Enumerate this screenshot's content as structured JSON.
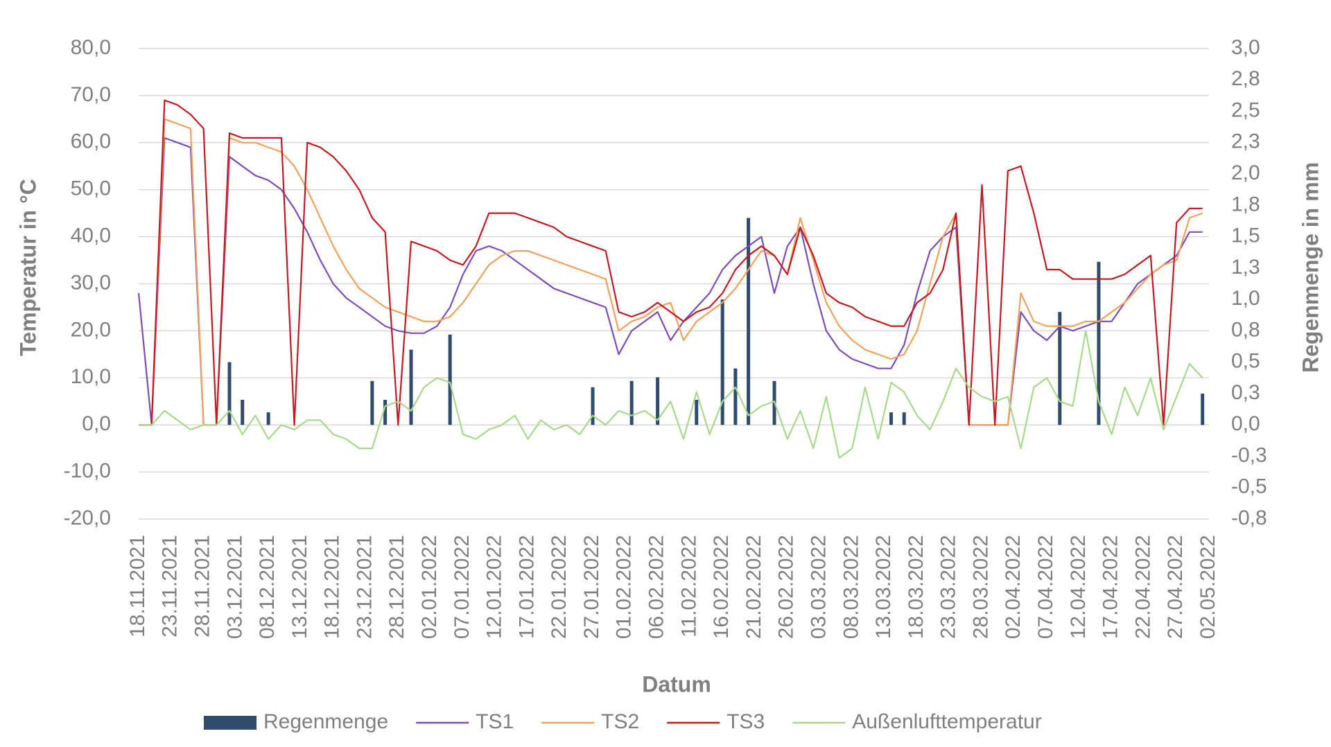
{
  "chart_data": {
    "type": "line",
    "y_label": "Temperatur in °C",
    "y2_label": "Regenmenge in mm",
    "x_label": "Datum",
    "x": [
      "18.11.2021",
      "20.11.2021",
      "22.11.2021",
      "24.11.2021",
      "26.11.2021",
      "28.11.2021",
      "30.11.2021",
      "02.12.2021",
      "04.12.2021",
      "06.12.2021",
      "08.12.2021",
      "10.12.2021",
      "12.12.2021",
      "14.12.2021",
      "16.12.2021",
      "18.12.2021",
      "20.12.2021",
      "22.12.2021",
      "24.12.2021",
      "26.12.2021",
      "28.12.2021",
      "30.12.2021",
      "01.01.2022",
      "03.01.2022",
      "05.01.2022",
      "07.01.2022",
      "09.01.2022",
      "11.01.2022",
      "13.01.2022",
      "15.01.2022",
      "17.01.2022",
      "19.01.2022",
      "21.01.2022",
      "23.01.2022",
      "25.01.2022",
      "27.01.2022",
      "29.01.2022",
      "31.01.2022",
      "02.02.2022",
      "04.02.2022",
      "06.02.2022",
      "08.02.2022",
      "10.02.2022",
      "12.02.2022",
      "14.02.2022",
      "16.02.2022",
      "18.02.2022",
      "20.02.2022",
      "22.02.2022",
      "24.02.2022",
      "26.02.2022",
      "28.02.2022",
      "02.03.2022",
      "04.03.2022",
      "06.03.2022",
      "08.03.2022",
      "10.03.2022",
      "12.03.2022",
      "14.03.2022",
      "16.03.2022",
      "18.03.2022",
      "20.03.2022",
      "22.03.2022",
      "24.03.2022",
      "26.03.2022",
      "28.03.2022",
      "30.03.2022",
      "01.04.2022",
      "03.04.2022",
      "05.04.2022",
      "07.04.2022",
      "09.04.2022",
      "11.04.2022",
      "13.04.2022",
      "15.04.2022",
      "17.04.2022",
      "19.04.2022",
      "21.04.2022",
      "23.04.2022",
      "25.04.2022",
      "27.04.2022",
      "29.04.2022",
      "01.05.2022"
    ],
    "xlim": [
      "18.11.2021",
      "02.05.2022"
    ],
    "xticks": [
      "18.11.2021",
      "23.11.2021",
      "28.11.2021",
      "03.12.2021",
      "08.12.2021",
      "13.12.2021",
      "18.12.2021",
      "23.12.2021",
      "28.12.2021",
      "02.01.2022",
      "07.01.2022",
      "12.01.2022",
      "17.01.2022",
      "22.01.2022",
      "27.01.2022",
      "01.02.2022",
      "06.02.2022",
      "11.02.2022",
      "16.02.2022",
      "21.02.2022",
      "26.02.2022",
      "03.03.2022",
      "08.03.2022",
      "13.03.2022",
      "18.03.2022",
      "23.03.2022",
      "28.03.2022",
      "02.04.2022",
      "07.04.2022",
      "12.04.2022",
      "17.04.2022",
      "22.04.2022",
      "27.04.2022",
      "02.05.2022"
    ],
    "ylim": [
      -20,
      80
    ],
    "yticks": [
      {
        "value": -20,
        "label": "-20,0"
      },
      {
        "value": -10,
        "label": "-10,0"
      },
      {
        "value": 0,
        "label": "0,0"
      },
      {
        "value": 10,
        "label": "10,0"
      },
      {
        "value": 20,
        "label": "20,0"
      },
      {
        "value": 30,
        "label": "30,0"
      },
      {
        "value": 40,
        "label": "40,0"
      },
      {
        "value": 50,
        "label": "50,0"
      },
      {
        "value": 60,
        "label": "60,0"
      },
      {
        "value": 70,
        "label": "70,0"
      },
      {
        "value": 80,
        "label": "80,0"
      }
    ],
    "y2lim": [
      -0.75,
      3.0
    ],
    "y2ticks": [
      {
        "value": -0.75,
        "label": "-0,8"
      },
      {
        "value": -0.5,
        "label": "-0,5"
      },
      {
        "value": -0.25,
        "label": "-0,3"
      },
      {
        "value": 0,
        "label": "0,0"
      },
      {
        "value": 0.25,
        "label": "0,3"
      },
      {
        "value": 0.5,
        "label": "0,5"
      },
      {
        "value": 0.75,
        "label": "0,8"
      },
      {
        "value": 1.0,
        "label": "1,0"
      },
      {
        "value": 1.25,
        "label": "1,3"
      },
      {
        "value": 1.5,
        "label": "1,5"
      },
      {
        "value": 1.75,
        "label": "1,8"
      },
      {
        "value": 2.0,
        "label": "2,0"
      },
      {
        "value": 2.25,
        "label": "2,3"
      },
      {
        "value": 2.5,
        "label": "2,5"
      },
      {
        "value": 2.75,
        "label": "2,8"
      },
      {
        "value": 3.0,
        "label": "3,0"
      }
    ],
    "grid": true,
    "legend": "bottom",
    "series": [
      {
        "name": "Regenmenge",
        "type": "bar",
        "axis": "y2",
        "color": "#2f4b6e",
        "values": [
          0,
          0,
          0,
          0,
          0,
          0,
          0,
          0.5,
          0.2,
          0,
          0.1,
          0,
          0,
          0,
          0,
          0,
          0,
          0,
          0.35,
          0.2,
          0,
          0.6,
          0,
          0,
          0.72,
          0,
          0,
          0,
          0,
          0,
          0,
          0,
          0,
          0,
          0,
          0.3,
          0,
          0,
          0.35,
          0,
          0.38,
          0,
          0,
          0.2,
          0,
          1.0,
          0.45,
          1.65,
          0,
          0.35,
          0,
          0,
          0,
          0,
          0,
          0,
          0,
          0,
          0.1,
          0.1,
          0,
          0,
          0,
          0,
          0,
          0,
          0,
          0,
          0,
          0,
          0,
          0.9,
          0,
          0,
          1.3,
          0,
          0,
          0,
          0,
          0,
          0,
          0,
          0.25
        ]
      },
      {
        "name": "TS1",
        "type": "line",
        "color": "#7a4cbc",
        "values": [
          28,
          0,
          61,
          60,
          59,
          0,
          0,
          57,
          55,
          53,
          52,
          50,
          46,
          41,
          35,
          30,
          27,
          25,
          23,
          21,
          20,
          19.5,
          19.5,
          21,
          25,
          32,
          37,
          38,
          37,
          35,
          33,
          31,
          29,
          28,
          27,
          26,
          25,
          15,
          20,
          22,
          24,
          18,
          22,
          25,
          28,
          33,
          36,
          38,
          40,
          28,
          38,
          42,
          30,
          20,
          16,
          14,
          13,
          12,
          12,
          17,
          28,
          37,
          40,
          42,
          0,
          0,
          0,
          0,
          24,
          20,
          18,
          21,
          20,
          21,
          22,
          22,
          26,
          30,
          32,
          34,
          36,
          41,
          41
        ]
      },
      {
        "name": "TS2",
        "type": "line",
        "color": "#f5a05a",
        "values": [
          0,
          0,
          65,
          64,
          63,
          0,
          0,
          61,
          60,
          60,
          59,
          58,
          55,
          50,
          44,
          38,
          33,
          29,
          27,
          25,
          24,
          23,
          22,
          22,
          23,
          26,
          30,
          34,
          36,
          37,
          37,
          36,
          35,
          34,
          33,
          32,
          31,
          20,
          22,
          23,
          25,
          26,
          18,
          22,
          24,
          26,
          29,
          33,
          37,
          36,
          32,
          44,
          35,
          26,
          21,
          18,
          16,
          15,
          14,
          15,
          20,
          30,
          40,
          45,
          0,
          0,
          0,
          0,
          28,
          22,
          21,
          21,
          21,
          22,
          22,
          24,
          26,
          29,
          32,
          34,
          35,
          44,
          45
        ]
      },
      {
        "name": "TS3",
        "type": "line",
        "color": "#c8171e",
        "values": [
          0,
          0,
          69,
          68,
          66,
          63,
          0,
          62,
          61,
          61,
          61,
          61,
          0,
          60,
          59,
          57,
          54,
          50,
          44,
          41,
          0,
          39,
          38,
          37,
          35,
          34,
          38,
          45,
          45,
          45,
          44,
          43,
          42,
          40,
          39,
          38,
          37,
          24,
          23,
          24,
          26,
          24,
          22,
          24,
          25,
          28,
          33,
          36,
          38,
          36,
          32,
          42,
          36,
          28,
          26,
          25,
          23,
          22,
          21,
          21,
          26,
          28,
          33,
          45,
          0,
          51,
          0,
          54,
          55,
          45,
          33,
          33,
          31,
          31,
          31,
          31,
          32,
          34,
          36,
          0,
          43,
          46,
          46
        ]
      },
      {
        "name": "Außenlufttemperatur",
        "type": "line",
        "color": "#a8d98a",
        "values": [
          0,
          0,
          3,
          1,
          -1,
          0,
          0,
          3,
          -2,
          2,
          -3,
          0,
          -1,
          1,
          1,
          -2,
          -3,
          -5,
          -5,
          4,
          5,
          3,
          8,
          10,
          9,
          -2,
          -3,
          -1,
          0,
          2,
          -3,
          1,
          -1,
          0,
          -2,
          2,
          0,
          3,
          2,
          3,
          1,
          5,
          -3,
          7,
          -2,
          5,
          8,
          2,
          4,
          5,
          -3,
          3,
          -5,
          6,
          -7,
          -5,
          8,
          -3,
          9,
          7,
          2,
          -1,
          5,
          12,
          8,
          6,
          5,
          6,
          -5,
          8,
          10,
          5,
          4,
          20,
          5,
          -2,
          8,
          2,
          10,
          -1,
          6,
          13,
          10
        ]
      }
    ]
  }
}
